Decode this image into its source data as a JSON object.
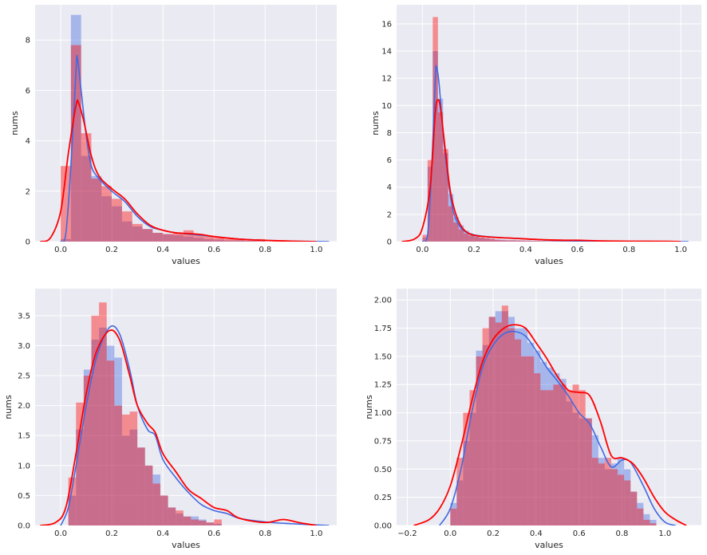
{
  "colors": {
    "background": "#eaeaf2",
    "grid": "#ffffff",
    "blue": "#4169e1",
    "red": "#ff0000"
  },
  "chart_data": [
    {
      "type": "histogram",
      "title": "",
      "xlabel": "values",
      "ylabel": "nums",
      "xlim": [
        -0.1,
        1.08
      ],
      "ylim": [
        0,
        9.4
      ],
      "xticks": [
        0.0,
        0.2,
        0.4,
        0.6,
        0.8,
        1.0
      ],
      "xtick_labels": [
        "0.0",
        "0.2",
        "0.4",
        "0.6",
        "0.8",
        "1.0"
      ],
      "yticks": [
        0,
        2,
        4,
        6,
        8
      ],
      "ytick_labels": [
        "0",
        "2",
        "4",
        "6",
        "8"
      ],
      "series": [
        {
          "name": "blue",
          "color": "#4169e1",
          "bin_start": 0.0,
          "bin_width": 0.04,
          "values": [
            0.1,
            9.0,
            3.4,
            2.6,
            1.8,
            1.4,
            0.8,
            0.6,
            0.5,
            0.35,
            0.3,
            0.25,
            0.2,
            0.15,
            0.1,
            0.08,
            0.05,
            0.05,
            0.03,
            0.02
          ],
          "kde": [
            [
              0.0,
              0.0
            ],
            [
              0.02,
              0.3
            ],
            [
              0.04,
              3.0
            ],
            [
              0.06,
              6.8
            ],
            [
              0.065,
              7.3
            ],
            [
              0.08,
              6.0
            ],
            [
              0.1,
              4.2
            ],
            [
              0.12,
              3.0
            ],
            [
              0.15,
              2.5
            ],
            [
              0.2,
              2.0
            ],
            [
              0.25,
              1.6
            ],
            [
              0.3,
              1.0
            ],
            [
              0.35,
              0.6
            ],
            [
              0.4,
              0.45
            ],
            [
              0.45,
              0.35
            ],
            [
              0.5,
              0.3
            ],
            [
              0.6,
              0.2
            ],
            [
              0.7,
              0.1
            ],
            [
              0.8,
              0.05
            ],
            [
              0.9,
              0.02
            ],
            [
              1.05,
              0.0
            ]
          ]
        },
        {
          "name": "red",
          "color": "#ff0000",
          "bin_start": 0.0,
          "bin_width": 0.04,
          "values": [
            3.0,
            7.8,
            4.3,
            2.5,
            2.2,
            1.7,
            1.2,
            0.7,
            0.5,
            0.35,
            0.3,
            0.35,
            0.45,
            0.25,
            0.2,
            0.15,
            0.1,
            0.1,
            0.05,
            0.1
          ],
          "kde": [
            [
              -0.08,
              0.0
            ],
            [
              -0.04,
              0.15
            ],
            [
              0.0,
              1.2
            ],
            [
              0.03,
              3.5
            ],
            [
              0.06,
              5.4
            ],
            [
              0.07,
              5.5
            ],
            [
              0.09,
              4.8
            ],
            [
              0.12,
              3.4
            ],
            [
              0.15,
              2.6
            ],
            [
              0.2,
              2.1
            ],
            [
              0.25,
              1.7
            ],
            [
              0.3,
              1.1
            ],
            [
              0.35,
              0.65
            ],
            [
              0.4,
              0.45
            ],
            [
              0.45,
              0.35
            ],
            [
              0.5,
              0.32
            ],
            [
              0.55,
              0.28
            ],
            [
              0.6,
              0.2
            ],
            [
              0.7,
              0.1
            ],
            [
              0.8,
              0.05
            ],
            [
              0.9,
              0.02
            ],
            [
              1.0,
              0.0
            ]
          ]
        }
      ]
    },
    {
      "type": "histogram",
      "title": "",
      "xlabel": "values",
      "ylabel": "nums",
      "xlim": [
        -0.1,
        1.08
      ],
      "ylim": [
        0,
        17.4
      ],
      "xticks": [
        0.0,
        0.2,
        0.4,
        0.6,
        0.8,
        1.0
      ],
      "xtick_labels": [
        "0.0",
        "0.2",
        "0.4",
        "0.6",
        "0.8",
        "1.0"
      ],
      "yticks": [
        0,
        2,
        4,
        6,
        8,
        10,
        12,
        14,
        16
      ],
      "ytick_labels": [
        "0",
        "2",
        "4",
        "6",
        "8",
        "10",
        "12",
        "14",
        "16"
      ],
      "series": [
        {
          "name": "blue",
          "color": "#4169e1",
          "bin_start": 0.0,
          "bin_width": 0.02,
          "values": [
            0.3,
            5.5,
            14.0,
            10.5,
            6.5,
            3.5,
            1.8,
            1.2,
            0.8,
            0.5,
            0.4,
            0.3,
            0.25,
            0.2,
            0.15,
            0.15,
            0.1,
            0.1,
            0.1,
            0.08,
            0.08,
            0.06,
            0.05,
            0.05,
            0.04,
            0.04,
            0.03,
            0.03,
            0.02,
            0.02
          ],
          "kde": [
            [
              0.0,
              0.0
            ],
            [
              0.02,
              0.5
            ],
            [
              0.035,
              5.0
            ],
            [
              0.05,
              12.0
            ],
            [
              0.055,
              12.8
            ],
            [
              0.065,
              11.5
            ],
            [
              0.08,
              8.0
            ],
            [
              0.1,
              4.5
            ],
            [
              0.12,
              2.2
            ],
            [
              0.15,
              1.0
            ],
            [
              0.2,
              0.5
            ],
            [
              0.3,
              0.3
            ],
            [
              0.4,
              0.2
            ],
            [
              0.5,
              0.1
            ],
            [
              0.6,
              0.05
            ],
            [
              0.8,
              0.02
            ],
            [
              1.03,
              0.0
            ]
          ]
        },
        {
          "name": "red",
          "color": "#ff0000",
          "bin_start": 0.0,
          "bin_width": 0.02,
          "values": [
            0.5,
            6.0,
            16.5,
            9.5,
            6.8,
            2.6,
            1.4,
            0.9,
            0.6,
            0.45,
            0.35,
            0.3,
            0.25,
            0.2,
            0.15,
            0.1,
            0.1,
            0.1,
            0.08,
            0.08,
            0.06,
            0.05,
            0.05,
            0.04,
            0.04,
            0.1,
            0.15,
            0.05,
            0.05,
            0.03
          ],
          "kde": [
            [
              -0.08,
              0.0
            ],
            [
              -0.03,
              0.2
            ],
            [
              0.0,
              1.0
            ],
            [
              0.03,
              4.0
            ],
            [
              0.05,
              9.5
            ],
            [
              0.06,
              10.4
            ],
            [
              0.07,
              9.8
            ],
            [
              0.09,
              6.5
            ],
            [
              0.11,
              3.5
            ],
            [
              0.14,
              1.5
            ],
            [
              0.18,
              0.6
            ],
            [
              0.25,
              0.35
            ],
            [
              0.35,
              0.25
            ],
            [
              0.45,
              0.15
            ],
            [
              0.55,
              0.1
            ],
            [
              0.6,
              0.1
            ],
            [
              0.7,
              0.05
            ],
            [
              0.8,
              0.03
            ],
            [
              0.95,
              0.02
            ],
            [
              1.0,
              0.0
            ]
          ]
        }
      ]
    },
    {
      "type": "histogram",
      "title": "",
      "xlabel": "values",
      "ylabel": "nums",
      "xlim": [
        -0.1,
        1.08
      ],
      "ylim": [
        0,
        3.95
      ],
      "xticks": [
        0.0,
        0.2,
        0.4,
        0.6,
        0.8,
        1.0
      ],
      "xtick_labels": [
        "0.0",
        "0.2",
        "0.4",
        "0.6",
        "0.8",
        "1.0"
      ],
      "yticks": [
        0.0,
        0.5,
        1.0,
        1.5,
        2.0,
        2.5,
        3.0,
        3.5
      ],
      "ytick_labels": [
        "0.0",
        "0.5",
        "1.0",
        "1.5",
        "2.0",
        "2.5",
        "3.0",
        "3.5"
      ],
      "series": [
        {
          "name": "blue",
          "color": "#4169e1",
          "bin_start": 0.03,
          "bin_width": 0.03,
          "values": [
            0.5,
            1.6,
            2.6,
            3.1,
            3.3,
            3.0,
            2.8,
            1.5,
            1.6,
            1.3,
            1.0,
            0.85,
            0.5,
            0.3,
            0.2,
            0.15,
            0.15,
            0.1,
            0.05,
            0.03
          ],
          "kde": [
            [
              0.0,
              0.0
            ],
            [
              0.03,
              0.3
            ],
            [
              0.06,
              1.0
            ],
            [
              0.1,
              2.0
            ],
            [
              0.14,
              2.8
            ],
            [
              0.19,
              3.3
            ],
            [
              0.23,
              3.2
            ],
            [
              0.27,
              2.6
            ],
            [
              0.3,
              2.0
            ],
            [
              0.34,
              1.6
            ],
            [
              0.37,
              1.5
            ],
            [
              0.4,
              1.1
            ],
            [
              0.45,
              0.8
            ],
            [
              0.5,
              0.55
            ],
            [
              0.55,
              0.35
            ],
            [
              0.6,
              0.25
            ],
            [
              0.65,
              0.2
            ],
            [
              0.7,
              0.12
            ],
            [
              0.8,
              0.06
            ],
            [
              0.9,
              0.03
            ],
            [
              1.05,
              0.0
            ]
          ]
        },
        {
          "name": "red",
          "color": "#ff0000",
          "bin_start": 0.03,
          "bin_width": 0.03,
          "values": [
            0.8,
            2.05,
            2.5,
            3.5,
            3.72,
            2.75,
            2.0,
            1.85,
            1.9,
            1.3,
            1.0,
            0.7,
            0.5,
            0.3,
            0.25,
            0.15,
            0.1,
            0.08,
            0.05,
            0.1
          ],
          "kde": [
            [
              -0.08,
              0.0
            ],
            [
              -0.02,
              0.05
            ],
            [
              0.02,
              0.3
            ],
            [
              0.06,
              1.2
            ],
            [
              0.1,
              2.2
            ],
            [
              0.14,
              2.9
            ],
            [
              0.19,
              3.25
            ],
            [
              0.23,
              3.1
            ],
            [
              0.27,
              2.5
            ],
            [
              0.3,
              2.0
            ],
            [
              0.34,
              1.7
            ],
            [
              0.37,
              1.55
            ],
            [
              0.4,
              1.2
            ],
            [
              0.45,
              0.9
            ],
            [
              0.5,
              0.6
            ],
            [
              0.55,
              0.45
            ],
            [
              0.6,
              0.3
            ],
            [
              0.65,
              0.25
            ],
            [
              0.7,
              0.12
            ],
            [
              0.8,
              0.05
            ],
            [
              0.87,
              0.1
            ],
            [
              0.93,
              0.05
            ],
            [
              1.0,
              0.0
            ]
          ]
        }
      ]
    },
    {
      "type": "histogram",
      "title": "",
      "xlabel": "values",
      "ylabel": "nums",
      "xlim": [
        -0.25,
        1.17
      ],
      "ylim": [
        0,
        2.1
      ],
      "xticks": [
        -0.2,
        0.0,
        0.2,
        0.4,
        0.6,
        0.8,
        1.0
      ],
      "xtick_labels": [
        "−0.2",
        "0.0",
        "0.2",
        "0.4",
        "0.6",
        "0.8",
        "1.0"
      ],
      "yticks": [
        0.0,
        0.25,
        0.5,
        0.75,
        1.0,
        1.25,
        1.5,
        1.75,
        2.0
      ],
      "ytick_labels": [
        "0.00",
        "0.25",
        "0.50",
        "0.75",
        "1.00",
        "1.25",
        "1.50",
        "1.75",
        "2.00"
      ],
      "series": [
        {
          "name": "blue",
          "color": "#4169e1",
          "bin_start": 0.0,
          "bin_width": 0.03,
          "values": [
            0.2,
            0.4,
            0.75,
            1.0,
            1.55,
            1.6,
            1.85,
            1.9,
            1.9,
            1.85,
            1.75,
            1.75,
            1.62,
            1.55,
            1.45,
            1.4,
            1.35,
            1.3,
            1.1,
            1.0,
            0.95,
            0.95,
            0.8,
            0.6,
            0.5,
            0.55,
            0.6,
            0.5,
            0.3,
            0.2,
            0.1,
            0.05
          ],
          "kde": [
            [
              -0.05,
              0.0
            ],
            [
              0.0,
              0.15
            ],
            [
              0.05,
              0.5
            ],
            [
              0.1,
              1.0
            ],
            [
              0.15,
              1.4
            ],
            [
              0.2,
              1.6
            ],
            [
              0.25,
              1.7
            ],
            [
              0.3,
              1.72
            ],
            [
              0.35,
              1.68
            ],
            [
              0.4,
              1.55
            ],
            [
              0.45,
              1.4
            ],
            [
              0.5,
              1.28
            ],
            [
              0.55,
              1.15
            ],
            [
              0.6,
              1.0
            ],
            [
              0.65,
              0.9
            ],
            [
              0.7,
              0.7
            ],
            [
              0.75,
              0.52
            ],
            [
              0.8,
              0.58
            ],
            [
              0.84,
              0.56
            ],
            [
              0.9,
              0.35
            ],
            [
              0.95,
              0.15
            ],
            [
              1.0,
              0.03
            ],
            [
              1.05,
              0.0
            ]
          ]
        },
        {
          "name": "red",
          "color": "#ff0000",
          "bin_start": 0.0,
          "bin_width": 0.03,
          "values": [
            0.15,
            0.6,
            1.0,
            1.2,
            1.5,
            1.75,
            1.85,
            1.8,
            1.95,
            1.75,
            1.65,
            1.5,
            1.5,
            1.35,
            1.2,
            1.2,
            1.25,
            1.25,
            1.2,
            1.25,
            1.2,
            0.95,
            0.6,
            0.55,
            0.6,
            0.5,
            0.45,
            0.4,
            0.3,
            0.15,
            0.05,
            0.02
          ],
          "kde": [
            [
              -0.17,
              0.0
            ],
            [
              -0.1,
              0.05
            ],
            [
              -0.05,
              0.15
            ],
            [
              0.0,
              0.35
            ],
            [
              0.05,
              0.7
            ],
            [
              0.1,
              1.1
            ],
            [
              0.15,
              1.45
            ],
            [
              0.2,
              1.65
            ],
            [
              0.25,
              1.75
            ],
            [
              0.3,
              1.78
            ],
            [
              0.35,
              1.75
            ],
            [
              0.4,
              1.62
            ],
            [
              0.45,
              1.48
            ],
            [
              0.5,
              1.32
            ],
            [
              0.55,
              1.2
            ],
            [
              0.6,
              1.18
            ],
            [
              0.65,
              1.15
            ],
            [
              0.7,
              0.92
            ],
            [
              0.75,
              0.62
            ],
            [
              0.8,
              0.6
            ],
            [
              0.85,
              0.55
            ],
            [
              0.9,
              0.42
            ],
            [
              0.95,
              0.25
            ],
            [
              1.0,
              0.12
            ],
            [
              1.05,
              0.05
            ],
            [
              1.1,
              0.0
            ]
          ]
        }
      ]
    }
  ]
}
